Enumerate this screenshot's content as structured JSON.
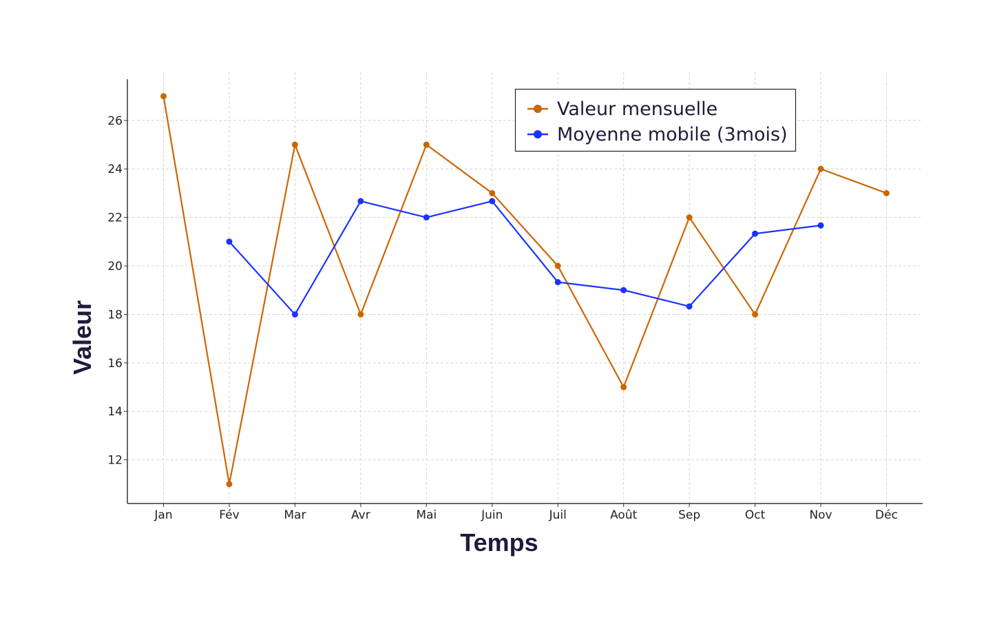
{
  "chart_data": {
    "type": "line",
    "title": "",
    "xlabel": "Temps",
    "ylabel": "Valeur",
    "categories": [
      "Jan",
      "Fév",
      "Mar",
      "Avr",
      "Mai",
      "Juin",
      "Juil",
      "Août",
      "Sep",
      "Oct",
      "Nov",
      "Déc"
    ],
    "yticks": [
      12,
      14,
      16,
      18,
      20,
      22,
      24,
      26
    ],
    "ylim": [
      10.2,
      27.7
    ],
    "grid": true,
    "legend_position": "top-right",
    "series": [
      {
        "name": "Valeur mensuelle",
        "color": "#cc6600",
        "values": [
          27,
          11,
          25,
          18,
          25,
          23,
          20,
          15,
          22,
          18,
          24,
          23
        ]
      },
      {
        "name": "Moyenne mobile (3mois)",
        "color": "#1a33ff",
        "values": [
          null,
          21,
          18,
          22.67,
          22,
          22.67,
          19.33,
          19,
          18.33,
          21.33,
          21.67,
          null
        ]
      }
    ]
  }
}
